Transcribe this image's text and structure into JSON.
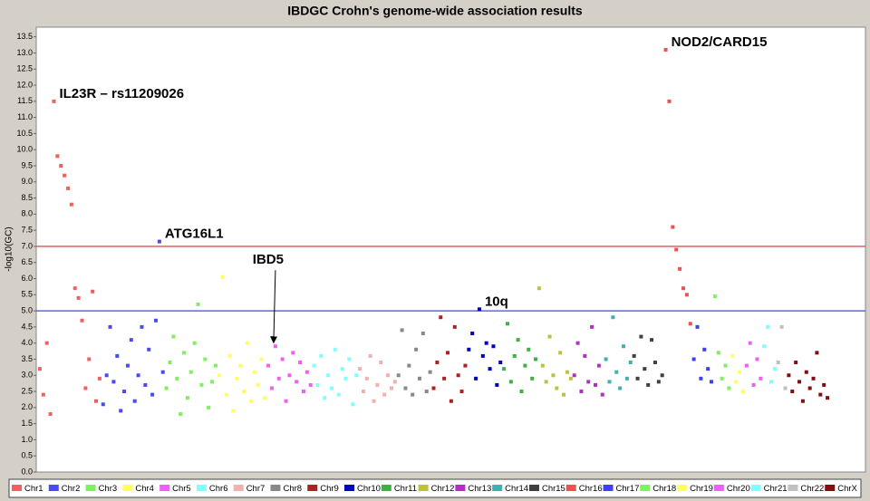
{
  "chart_data": {
    "type": "scatter",
    "title": "IBDGC Crohn's genome-wide association results",
    "y_label": "-log10(GC)",
    "ylim": [
      0,
      13.8
    ],
    "yticks": [
      {
        "value": 0,
        "label": "0.0"
      },
      {
        "value": 0.5,
        "label": "0.5"
      },
      {
        "value": 1,
        "label": "1.0"
      },
      {
        "value": 1.5,
        "label": "1.5"
      },
      {
        "value": 2,
        "label": "2.0"
      },
      {
        "value": 2.5,
        "label": "2.5"
      },
      {
        "value": 3,
        "label": "3.0"
      },
      {
        "value": 3.5,
        "label": "3.5"
      },
      {
        "value": 4,
        "label": "4.0"
      },
      {
        "value": 4.5,
        "label": "4.5"
      },
      {
        "value": 5,
        "label": "5.0"
      },
      {
        "value": 5.5,
        "label": "5.5"
      },
      {
        "value": 6,
        "label": "6.0"
      },
      {
        "value": 6.5,
        "label": "6.5"
      },
      {
        "value": 7,
        "label": "7.0"
      },
      {
        "value": 7.5,
        "label": "7.5"
      },
      {
        "value": 8,
        "label": "8.0"
      },
      {
        "value": 8.5,
        "label": "8.5"
      },
      {
        "value": 9,
        "label": "9.0"
      },
      {
        "value": 9.5,
        "label": "9.5"
      },
      {
        "value": 10,
        "label": "10.0"
      },
      {
        "value": 10.5,
        "label": "10.5"
      },
      {
        "value": 11,
        "label": "11.0"
      },
      {
        "value": 11.5,
        "label": "11.5"
      },
      {
        "value": 12,
        "label": "12.0"
      },
      {
        "value": 12.5,
        "label": "12.5"
      },
      {
        "value": 13,
        "label": "13.0"
      },
      {
        "value": 13.5,
        "label": "13.5"
      }
    ],
    "grid": false,
    "legend": "bottom",
    "thresholds": [
      {
        "value": 7,
        "color": "#e05050"
      },
      {
        "value": 5,
        "color": "#3a4ae8"
      }
    ],
    "series": [
      {
        "name": "Chr1",
        "color": "#f06060",
        "values": [
          3.2,
          2.4,
          4.0,
          1.8,
          11.5,
          9.8,
          9.5,
          9.2,
          8.8,
          8.3,
          5.7,
          5.4,
          4.7,
          2.6,
          3.5,
          5.6,
          2.2,
          2.9
        ]
      },
      {
        "name": "Chr2",
        "color": "#4a4af0",
        "values": [
          2.1,
          3.0,
          4.5,
          2.8,
          3.6,
          1.9,
          2.5,
          3.3,
          4.1,
          2.2,
          3.0,
          4.5,
          2.7,
          3.8,
          2.4,
          4.7,
          7.15,
          3.1
        ]
      },
      {
        "name": "Chr3",
        "color": "#80f060",
        "values": [
          2.6,
          3.4,
          4.2,
          2.9,
          1.8,
          3.7,
          2.3,
          3.1,
          4.0,
          5.2,
          2.7,
          3.5,
          2.0,
          2.8,
          3.3
        ]
      },
      {
        "name": "Chr4",
        "color": "#ffff60",
        "values": [
          3.0,
          6.05,
          2.4,
          3.6,
          1.9,
          2.9,
          3.3,
          2.5,
          4.0,
          2.2,
          3.1,
          2.7,
          3.5,
          2.3
        ]
      },
      {
        "name": "Chr5",
        "color": "#f060f0",
        "values": [
          3.3,
          2.6,
          3.9,
          2.9,
          3.5,
          2.2,
          3.0,
          3.7,
          2.8,
          3.4,
          2.5,
          3.1,
          2.7
        ]
      },
      {
        "name": "Chr6",
        "color": "#80ffff",
        "values": [
          3.3,
          2.7,
          3.6,
          2.3,
          3.0,
          2.6,
          3.8,
          2.4,
          3.2,
          2.9,
          3.5,
          2.1,
          3.0
        ]
      },
      {
        "name": "Chr7",
        "color": "#f0b0b0",
        "values": [
          3.2,
          2.5,
          2.9,
          3.6,
          2.2,
          2.7,
          3.4,
          2.4,
          3.0,
          2.6,
          2.8
        ]
      },
      {
        "name": "Chr8",
        "color": "#888888",
        "values": [
          3.0,
          4.4,
          2.6,
          3.3,
          2.4,
          3.8,
          2.9,
          4.3,
          2.5,
          3.1
        ]
      },
      {
        "name": "Chr9",
        "color": "#b02020",
        "values": [
          2.6,
          3.4,
          4.8,
          2.9,
          3.7,
          2.2,
          4.5,
          3.0,
          2.5,
          3.3
        ]
      },
      {
        "name": "Chr10",
        "color": "#0000c0",
        "values": [
          3.8,
          4.3,
          2.9,
          5.05,
          3.6,
          4.0,
          3.2,
          3.9,
          2.7,
          3.4
        ]
      },
      {
        "name": "Chr11",
        "color": "#40b040",
        "values": [
          3.2,
          4.6,
          2.8,
          3.6,
          4.1,
          2.5,
          3.3,
          3.8,
          2.9,
          3.5
        ]
      },
      {
        "name": "Chr12",
        "color": "#c0c040",
        "values": [
          5.7,
          3.3,
          2.8,
          4.2,
          3.0,
          2.6,
          3.7,
          2.4,
          3.1,
          2.9
        ]
      },
      {
        "name": "Chr13",
        "color": "#b030c0",
        "values": [
          3.0,
          4.0,
          2.5,
          3.6,
          2.8,
          4.5,
          2.7,
          3.3,
          2.4
        ]
      },
      {
        "name": "Chr14",
        "color": "#40b0b0",
        "values": [
          3.5,
          2.8,
          4.8,
          3.1,
          2.6,
          3.9,
          2.9,
          3.4
        ]
      },
      {
        "name": "Chr15",
        "color": "#404040",
        "values": [
          3.6,
          2.9,
          4.2,
          3.2,
          2.7,
          4.1,
          3.4,
          2.8,
          3.0
        ]
      },
      {
        "name": "Chr16",
        "color": "#f05050",
        "values": [
          13.1,
          11.5,
          7.6,
          6.9,
          6.3,
          5.7,
          5.5,
          4.6
        ]
      },
      {
        "name": "Chr17",
        "color": "#4040f0",
        "values": [
          3.5,
          4.5,
          2.9,
          3.8,
          3.2,
          2.8
        ]
      },
      {
        "name": "Chr18",
        "color": "#80f060",
        "values": [
          5.45,
          3.7,
          2.9,
          3.3,
          2.6
        ]
      },
      {
        "name": "Chr19",
        "color": "#ffff60",
        "values": [
          3.6,
          2.8,
          3.1,
          2.5
        ]
      },
      {
        "name": "Chr20",
        "color": "#f060f0",
        "values": [
          3.3,
          4.0,
          2.7,
          3.5,
          2.9
        ]
      },
      {
        "name": "Chr21",
        "color": "#80ffff",
        "values": [
          3.9,
          4.5,
          2.8,
          3.2
        ]
      },
      {
        "name": "Chr22",
        "color": "#c0c0c0",
        "values": [
          3.4,
          4.5,
          2.6
        ]
      },
      {
        "name": "ChrX",
        "color": "#801010",
        "values": [
          3.0,
          2.5,
          3.4,
          2.8,
          2.2,
          3.1,
          2.6,
          2.9,
          3.7,
          2.4,
          2.7,
          2.3
        ]
      }
    ],
    "annotations": [
      {
        "text": "IL23R – rs11209026",
        "series": "Chr1"
      },
      {
        "text": "ATG16L1",
        "series": "Chr2"
      },
      {
        "text": "IBD5",
        "series": "Chr5",
        "arrow": true
      },
      {
        "text": "10q",
        "series": "Chr10"
      },
      {
        "text": "NOD2/CARD15",
        "series": "Chr16"
      }
    ]
  }
}
